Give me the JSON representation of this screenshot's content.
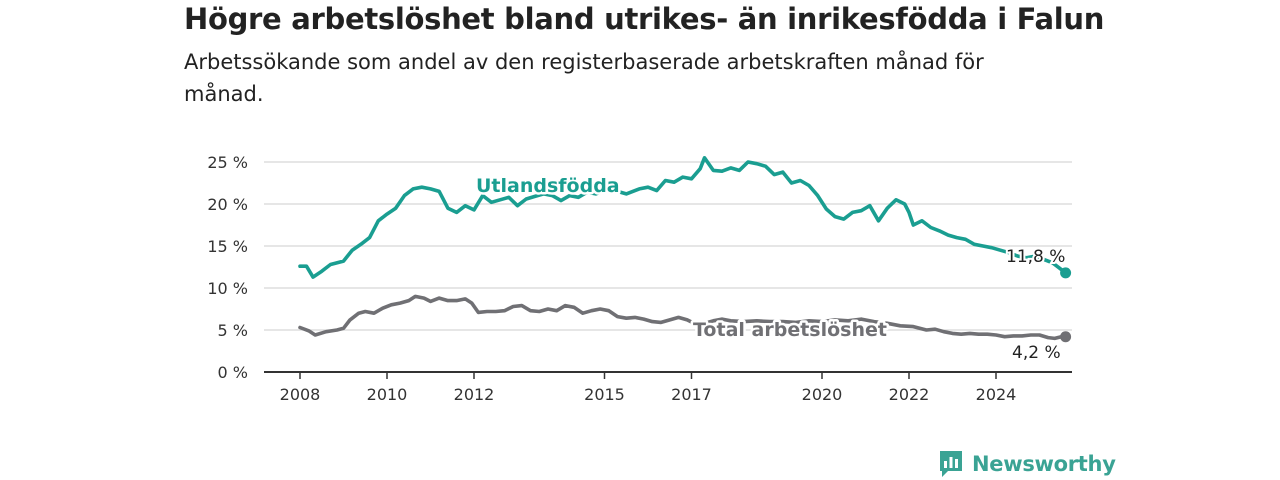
{
  "title": "Högre arbetslöshet bland utrikes- än inrikesfödda i Falun",
  "subtitle": "Arbetssökande som andel av den registerbaserade arbetskraften månad för månad.",
  "brand": {
    "name": "Newsworthy",
    "icon": "newsworthy-logo-icon",
    "color": "#3aa394"
  },
  "chart_data": {
    "type": "line",
    "title": "Högre arbetslöshet bland utrikes- än inrikesfödda i Falun",
    "subtitle": "Arbetssökande som andel av den registerbaserade arbetskraften månad för månad.",
    "xlabel": "",
    "ylabel": "",
    "xlim": [
      2007.9,
      2025.6
    ],
    "ylim": [
      0,
      25
    ],
    "grid": true,
    "legend": "inline labels",
    "x_ticks": [
      {
        "value": 2008,
        "label": "2008"
      },
      {
        "value": 2010,
        "label": "2010"
      },
      {
        "value": 2012,
        "label": "2012"
      },
      {
        "value": 2015,
        "label": "2015"
      },
      {
        "value": 2017,
        "label": "2017"
      },
      {
        "value": 2020,
        "label": "2020"
      },
      {
        "value": 2022,
        "label": "2022"
      },
      {
        "value": 2024,
        "label": "2024"
      }
    ],
    "y_ticks": [
      {
        "value": 0,
        "label": "0 %"
      },
      {
        "value": 5,
        "label": "5 %"
      },
      {
        "value": 10,
        "label": "10 %"
      },
      {
        "value": 15,
        "label": "15 %"
      },
      {
        "value": 20,
        "label": "20 %"
      },
      {
        "value": 25,
        "label": "25 %"
      }
    ],
    "series": [
      {
        "name": "Utlandsfödda",
        "color": "#1a9e91",
        "end_label": "11,8 %",
        "points": [
          [
            2008.0,
            12.6
          ],
          [
            2008.15,
            12.6
          ],
          [
            2008.3,
            11.3
          ],
          [
            2008.5,
            12.0
          ],
          [
            2008.7,
            12.8
          ],
          [
            2009.0,
            13.2
          ],
          [
            2009.2,
            14.5
          ],
          [
            2009.4,
            15.2
          ],
          [
            2009.6,
            16.0
          ],
          [
            2009.8,
            18.0
          ],
          [
            2010.0,
            18.8
          ],
          [
            2010.2,
            19.5
          ],
          [
            2010.4,
            21.0
          ],
          [
            2010.6,
            21.8
          ],
          [
            2010.8,
            22.0
          ],
          [
            2011.0,
            21.8
          ],
          [
            2011.2,
            21.5
          ],
          [
            2011.4,
            19.5
          ],
          [
            2011.6,
            19.0
          ],
          [
            2011.8,
            19.8
          ],
          [
            2012.0,
            19.3
          ],
          [
            2012.2,
            21.0
          ],
          [
            2012.4,
            20.2
          ],
          [
            2012.6,
            20.5
          ],
          [
            2012.8,
            20.8
          ],
          [
            2013.0,
            19.8
          ],
          [
            2013.2,
            20.6
          ],
          [
            2013.4,
            20.9
          ],
          [
            2013.6,
            21.2
          ],
          [
            2013.8,
            21.0
          ],
          [
            2014.0,
            20.4
          ],
          [
            2014.2,
            21.0
          ],
          [
            2014.4,
            20.8
          ],
          [
            2014.6,
            21.4
          ],
          [
            2014.8,
            21.2
          ],
          [
            2015.0,
            21.6
          ],
          [
            2015.3,
            21.5
          ],
          [
            2015.5,
            21.2
          ],
          [
            2015.8,
            21.8
          ],
          [
            2016.0,
            22.0
          ],
          [
            2016.2,
            21.6
          ],
          [
            2016.4,
            22.8
          ],
          [
            2016.6,
            22.6
          ],
          [
            2016.8,
            23.2
          ],
          [
            2017.0,
            23.0
          ],
          [
            2017.2,
            24.2
          ],
          [
            2017.3,
            25.5
          ],
          [
            2017.5,
            24.0
          ],
          [
            2017.7,
            23.9
          ],
          [
            2017.9,
            24.3
          ],
          [
            2018.1,
            24.0
          ],
          [
            2018.3,
            25.0
          ],
          [
            2018.5,
            24.8
          ],
          [
            2018.7,
            24.5
          ],
          [
            2018.9,
            23.5
          ],
          [
            2019.1,
            23.8
          ],
          [
            2019.3,
            22.5
          ],
          [
            2019.5,
            22.8
          ],
          [
            2019.7,
            22.2
          ],
          [
            2019.9,
            21.0
          ],
          [
            2020.1,
            19.4
          ],
          [
            2020.3,
            18.5
          ],
          [
            2020.5,
            18.2
          ],
          [
            2020.7,
            19.0
          ],
          [
            2020.9,
            19.2
          ],
          [
            2021.1,
            19.8
          ],
          [
            2021.3,
            18.0
          ],
          [
            2021.5,
            19.5
          ],
          [
            2021.7,
            20.5
          ],
          [
            2021.9,
            20.0
          ],
          [
            2022.0,
            19.0
          ],
          [
            2022.1,
            17.5
          ],
          [
            2022.3,
            18.0
          ],
          [
            2022.5,
            17.2
          ],
          [
            2022.7,
            16.8
          ],
          [
            2022.9,
            16.3
          ],
          [
            2023.1,
            16.0
          ],
          [
            2023.3,
            15.8
          ],
          [
            2023.5,
            15.2
          ],
          [
            2023.7,
            15.0
          ],
          [
            2023.9,
            14.8
          ],
          [
            2024.1,
            14.5
          ],
          [
            2024.3,
            14.2
          ],
          [
            2024.5,
            13.8
          ],
          [
            2024.7,
            13.6
          ],
          [
            2024.9,
            13.8
          ],
          [
            2025.1,
            13.4
          ],
          [
            2025.3,
            13.0
          ],
          [
            2025.45,
            12.4
          ],
          [
            2025.6,
            11.8
          ]
        ]
      },
      {
        "name": "Total arbetslöshet",
        "color": "#707074",
        "end_label": "4,2 %",
        "points": [
          [
            2008.0,
            5.3
          ],
          [
            2008.2,
            4.9
          ],
          [
            2008.35,
            4.4
          ],
          [
            2008.6,
            4.8
          ],
          [
            2008.85,
            5.0
          ],
          [
            2009.0,
            5.2
          ],
          [
            2009.15,
            6.2
          ],
          [
            2009.35,
            7.0
          ],
          [
            2009.5,
            7.2
          ],
          [
            2009.7,
            7.0
          ],
          [
            2009.9,
            7.6
          ],
          [
            2010.1,
            8.0
          ],
          [
            2010.3,
            8.2
          ],
          [
            2010.5,
            8.5
          ],
          [
            2010.65,
            9.0
          ],
          [
            2010.85,
            8.8
          ],
          [
            2011.0,
            8.4
          ],
          [
            2011.2,
            8.8
          ],
          [
            2011.4,
            8.5
          ],
          [
            2011.6,
            8.5
          ],
          [
            2011.8,
            8.7
          ],
          [
            2011.95,
            8.2
          ],
          [
            2012.1,
            7.1
          ],
          [
            2012.3,
            7.2
          ],
          [
            2012.5,
            7.2
          ],
          [
            2012.7,
            7.3
          ],
          [
            2012.9,
            7.8
          ],
          [
            2013.1,
            7.9
          ],
          [
            2013.3,
            7.3
          ],
          [
            2013.5,
            7.2
          ],
          [
            2013.7,
            7.5
          ],
          [
            2013.9,
            7.3
          ],
          [
            2014.1,
            7.9
          ],
          [
            2014.3,
            7.7
          ],
          [
            2014.5,
            7.0
          ],
          [
            2014.7,
            7.3
          ],
          [
            2014.9,
            7.5
          ],
          [
            2015.1,
            7.3
          ],
          [
            2015.3,
            6.6
          ],
          [
            2015.5,
            6.4
          ],
          [
            2015.7,
            6.5
          ],
          [
            2015.9,
            6.3
          ],
          [
            2016.1,
            6.0
          ],
          [
            2016.3,
            5.9
          ],
          [
            2016.5,
            6.2
          ],
          [
            2016.7,
            6.5
          ],
          [
            2016.9,
            6.2
          ],
          [
            2017.1,
            5.7
          ],
          [
            2017.3,
            5.8
          ],
          [
            2017.5,
            6.1
          ],
          [
            2017.7,
            6.3
          ],
          [
            2017.9,
            6.1
          ],
          [
            2018.2,
            6.0
          ],
          [
            2018.5,
            6.1
          ],
          [
            2018.8,
            6.0
          ],
          [
            2019.1,
            6.0
          ],
          [
            2019.4,
            5.9
          ],
          [
            2019.7,
            6.1
          ],
          [
            2020.0,
            6.0
          ],
          [
            2020.3,
            6.2
          ],
          [
            2020.6,
            6.1
          ],
          [
            2020.9,
            6.3
          ],
          [
            2021.2,
            6.0
          ],
          [
            2021.5,
            5.8
          ],
          [
            2021.8,
            5.5
          ],
          [
            2022.1,
            5.4
          ],
          [
            2022.4,
            5.0
          ],
          [
            2022.6,
            5.1
          ],
          [
            2022.8,
            4.8
          ],
          [
            2023.0,
            4.6
          ],
          [
            2023.2,
            4.5
          ],
          [
            2023.4,
            4.6
          ],
          [
            2023.6,
            4.5
          ],
          [
            2023.8,
            4.5
          ],
          [
            2024.0,
            4.4
          ],
          [
            2024.2,
            4.2
          ],
          [
            2024.4,
            4.3
          ],
          [
            2024.6,
            4.3
          ],
          [
            2024.8,
            4.4
          ],
          [
            2025.0,
            4.4
          ],
          [
            2025.2,
            4.1
          ],
          [
            2025.35,
            4.0
          ],
          [
            2025.5,
            4.2
          ],
          [
            2025.6,
            4.2
          ]
        ]
      }
    ]
  }
}
